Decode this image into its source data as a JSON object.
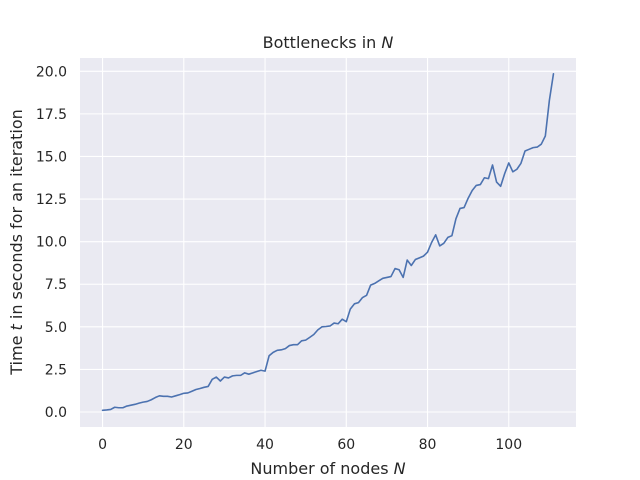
{
  "chart_data": {
    "type": "line",
    "title": "Bottlenecks in",
    "title_var": "N",
    "xlabel_pre": "Number of nodes ",
    "xlabel_var": "N",
    "ylabel_pre": "Time ",
    "ylabel_var": "t",
    "ylabel_post": " in seconds for an iteration",
    "xlim": [
      -5.55,
      116.55
    ],
    "ylim": [
      -0.88,
      20.78
    ],
    "xticks": [
      0,
      20,
      40,
      60,
      80,
      100
    ],
    "xtick_labels": [
      "0",
      "20",
      "40",
      "60",
      "80",
      "100"
    ],
    "yticks": [
      0,
      2.5,
      5,
      7.5,
      10,
      12.5,
      15,
      17.5,
      20
    ],
    "ytick_labels": [
      "0.0",
      "2.5",
      "5.0",
      "7.5",
      "10.0",
      "12.5",
      "15.0",
      "17.5",
      "20.0"
    ],
    "grid": true,
    "colors": {
      "background": "#eaeaf2",
      "grid": "#ffffff",
      "line": "#4c72b0",
      "text": "#262626"
    },
    "series": [
      {
        "name": "time",
        "x": [
          0,
          1,
          2,
          3,
          4,
          5,
          6,
          7,
          8,
          9,
          10,
          11,
          12,
          13,
          14,
          15,
          16,
          17,
          18,
          19,
          20,
          21,
          22,
          23,
          24,
          25,
          26,
          27,
          28,
          29,
          30,
          31,
          32,
          33,
          34,
          35,
          36,
          37,
          38,
          39,
          40,
          41,
          42,
          43,
          44,
          45,
          46,
          47,
          48,
          49,
          50,
          51,
          52,
          53,
          54,
          55,
          56,
          57,
          58,
          59,
          60,
          61,
          62,
          63,
          64,
          65,
          66,
          67,
          68,
          69,
          70,
          71,
          72,
          73,
          74,
          75,
          76,
          77,
          78,
          79,
          80,
          81,
          82,
          83,
          84,
          85,
          86,
          87,
          88,
          89,
          90,
          91,
          92,
          93,
          94,
          95,
          96,
          97,
          98,
          99,
          100,
          101,
          102,
          103,
          104,
          105,
          106,
          107,
          108,
          109,
          110,
          111
        ],
        "values": [
          0.1,
          0.12,
          0.15,
          0.28,
          0.25,
          0.25,
          0.35,
          0.4,
          0.45,
          0.52,
          0.58,
          0.62,
          0.72,
          0.85,
          0.95,
          0.92,
          0.92,
          0.88,
          0.95,
          1.02,
          1.1,
          1.12,
          1.22,
          1.32,
          1.38,
          1.45,
          1.5,
          1.92,
          2.05,
          1.82,
          2.05,
          2.0,
          2.12,
          2.15,
          2.15,
          2.3,
          2.22,
          2.3,
          2.38,
          2.45,
          2.4,
          3.3,
          3.5,
          3.62,
          3.65,
          3.72,
          3.9,
          3.95,
          3.95,
          4.18,
          4.22,
          4.38,
          4.55,
          4.82,
          5.0,
          5.02,
          5.05,
          5.22,
          5.18,
          5.45,
          5.3,
          6.05,
          6.35,
          6.42,
          6.72,
          6.85,
          7.45,
          7.55,
          7.7,
          7.85,
          7.9,
          7.95,
          8.42,
          8.35,
          7.9,
          8.92,
          8.6,
          8.95,
          9.05,
          9.15,
          9.38,
          9.95,
          10.4,
          9.75,
          9.9,
          10.25,
          10.35,
          11.35,
          11.95,
          12.0,
          12.55,
          13.0,
          13.3,
          13.35,
          13.75,
          13.7,
          14.5,
          13.5,
          13.25,
          14.0,
          14.62,
          14.1,
          14.25,
          14.6,
          15.32,
          15.42,
          15.52,
          15.55,
          15.72,
          16.2,
          18.3,
          19.85
        ]
      }
    ]
  }
}
